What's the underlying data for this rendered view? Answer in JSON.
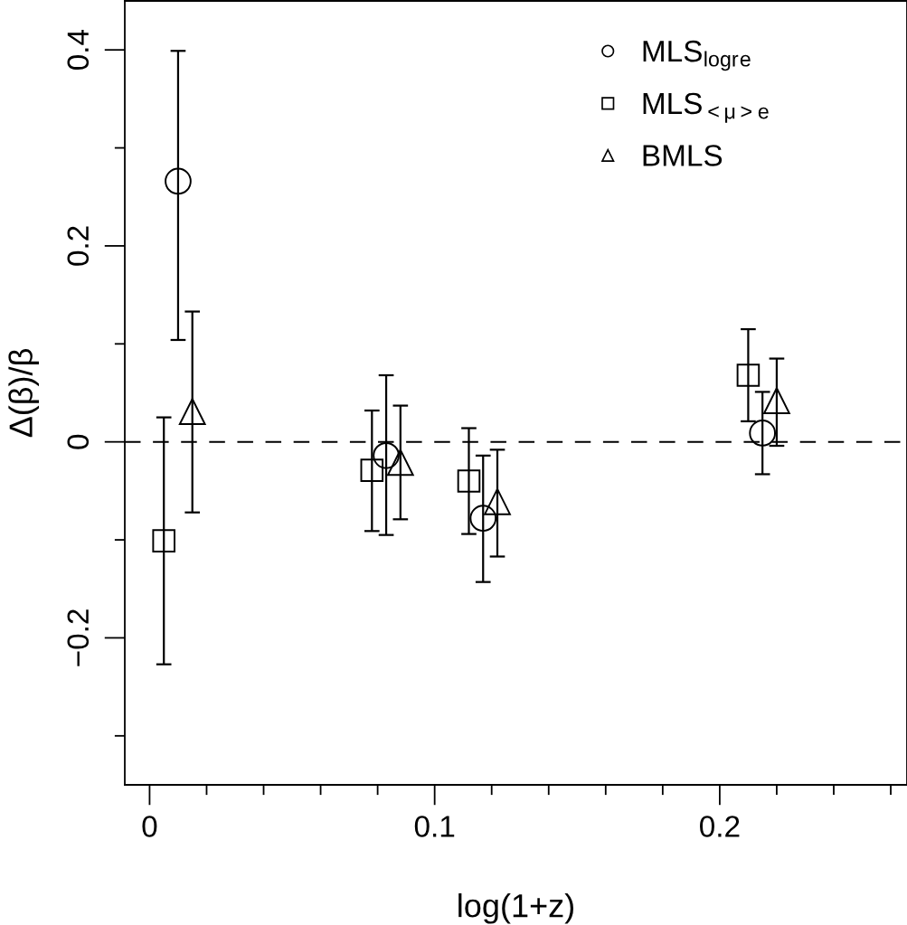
{
  "chart_data": {
    "type": "scatter",
    "xlabel": "log(1+z)",
    "ylabel": "Δ(β)/β",
    "xlim": [
      -0.0087,
      0.2657
    ],
    "ylim": [
      -0.35,
      0.45
    ],
    "xticks": [
      {
        "value": 0,
        "label": "0"
      },
      {
        "value": 0.02,
        "label": null
      },
      {
        "value": 0.04,
        "label": null
      },
      {
        "value": 0.06,
        "label": null
      },
      {
        "value": 0.08,
        "label": null
      },
      0.1,
      {
        "value": 0.12,
        "label": null
      },
      {
        "value": 0.14,
        "label": null
      },
      {
        "value": 0.16,
        "label": null
      },
      {
        "value": 0.18,
        "label": null
      },
      0.2,
      {
        "value": 0.22,
        "label": null
      },
      {
        "value": 0.24,
        "label": null
      },
      {
        "value": 0.26,
        "label": null
      }
    ],
    "yticks": [
      {
        "value": -0.3,
        "label": null
      },
      {
        "value": -0.2,
        "label": "−0.2"
      },
      {
        "value": -0.1,
        "label": null
      },
      0,
      {
        "value": 0.1,
        "label": null
      },
      0.2,
      {
        "value": 0.3,
        "label": null
      },
      0.4
    ],
    "grid": false,
    "legend": "top right",
    "ref_lines": [
      {
        "axis": "y",
        "value": 0,
        "color": "#000000",
        "line_style": "dashed"
      }
    ],
    "series": [
      {
        "name": "MLS$_{logr}$$_{e}$",
        "color": "#000000",
        "marker": "circle",
        "x": [
          0.01,
          0.083,
          0.117,
          0.215
        ],
        "values": [
          0.266,
          -0.014,
          -0.078,
          0.009
        ],
        "errors": [
          [
            0.104,
            0.399
          ],
          [
            -0.095,
            0.068
          ],
          [
            -0.143,
            -0.014
          ],
          [
            -0.033,
            0.051
          ]
        ]
      },
      {
        "name": "MLS$_{<μ>}$$_{e}$",
        "color": "#000000",
        "marker": "square",
        "x": [
          0.005,
          0.078,
          0.112,
          0.21
        ],
        "values": [
          -0.101,
          -0.029,
          -0.04,
          0.068
        ],
        "errors": [
          [
            -0.227,
            0.025
          ],
          [
            -0.091,
            0.032
          ],
          [
            -0.094,
            0.014
          ],
          [
            0.021,
            0.115
          ]
        ]
      },
      {
        "name": "BMLS",
        "color": "#000000",
        "marker": "triangle",
        "x": [
          0.015,
          0.088,
          0.122,
          0.22
        ],
        "values": [
          0.031,
          -0.021,
          -0.061,
          0.042
        ],
        "errors": [
          [
            -0.072,
            0.133
          ],
          [
            -0.079,
            0.037
          ],
          [
            -0.117,
            -0.008
          ],
          [
            -0.004,
            0.085
          ]
        ]
      }
    ]
  }
}
